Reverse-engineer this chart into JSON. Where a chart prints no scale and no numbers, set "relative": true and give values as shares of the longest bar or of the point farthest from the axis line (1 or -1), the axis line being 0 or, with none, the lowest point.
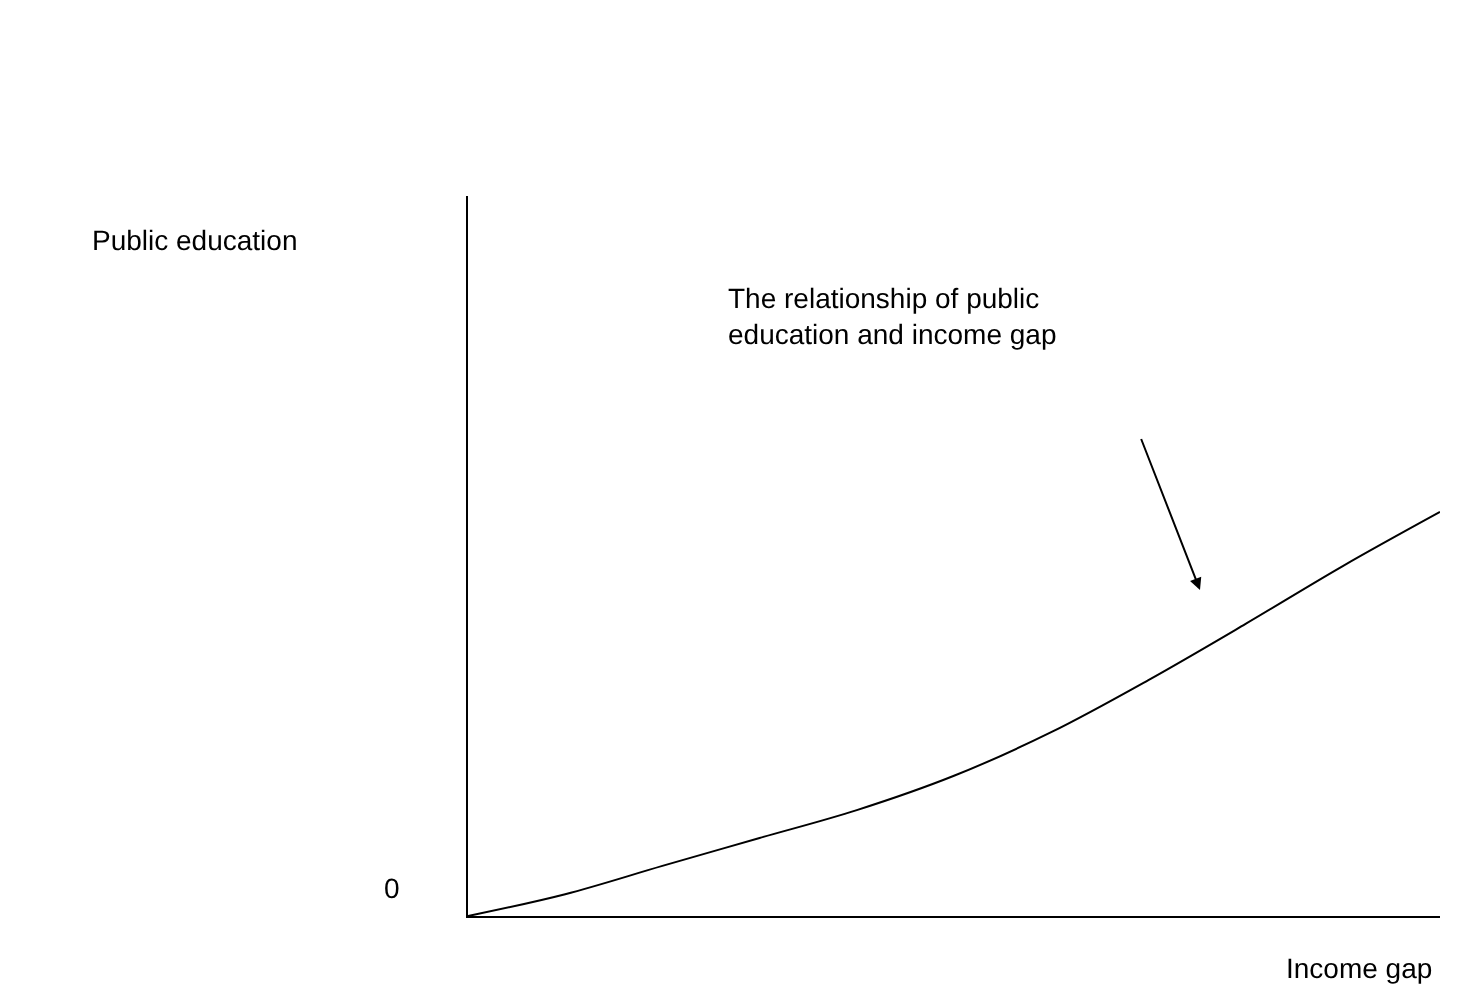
{
  "chart_data": {
    "type": "line",
    "relative": true,
    "xlabel": "Income gap",
    "categories": [
      null,
      null,
      null,
      null,
      null,
      null,
      null,
      null,
      null,
      null,
      null
    ],
    "series": [
      {
        "color": "#000000",
        "values": [
          0,
          0.054,
          0.124,
          0.193,
          0.262,
          0.347,
          0.455,
          0.584,
          0.723,
          0.866,
          1
        ]
      }
    ],
    "annotations": [
      "The relationship of public education and income gap",
      "0",
      "Public education"
    ],
    "marker": "none",
    "line_style": "solid"
  }
}
